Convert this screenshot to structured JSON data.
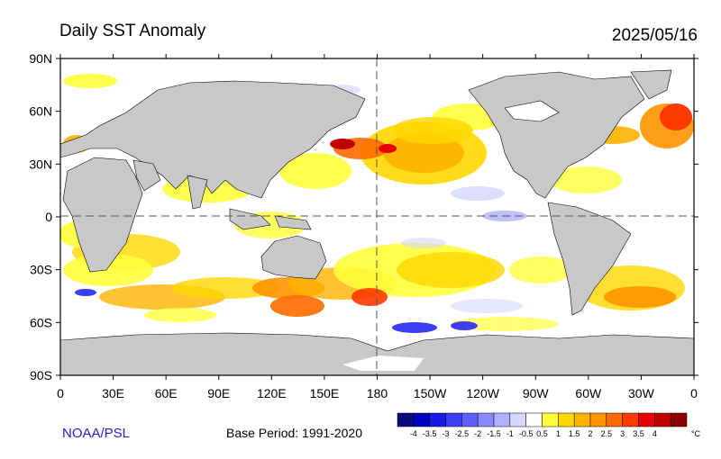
{
  "header": {
    "title": "Daily SST Anomaly",
    "date": "2025/05/16"
  },
  "footer": {
    "credit": "NOAA/PSL",
    "base_period": "Base Period: 1991-2020"
  },
  "map": {
    "projection": "equirectangular",
    "lon_range": [
      0,
      360
    ],
    "lat_range": [
      -90,
      90
    ],
    "land_color": "#c8c8c8",
    "ice_color": "#ffffff",
    "lat_labels": [
      "90N",
      "60N",
      "30N",
      "0",
      "30S",
      "60S",
      "90S"
    ],
    "lon_labels": [
      "0",
      "30E",
      "60E",
      "90E",
      "120E",
      "150E",
      "180",
      "150W",
      "120W",
      "90W",
      "60W",
      "30W",
      "0"
    ],
    "dashed_reference_lines": [
      "equator",
      "dateline"
    ]
  },
  "colorbar": {
    "unit": "°C",
    "colors": [
      "#0a0a7d",
      "#0000bd",
      "#1a1ae6",
      "#3d3df5",
      "#6060ff",
      "#8a8aff",
      "#b0b0ff",
      "#d6d6ff",
      "#ffffff",
      "#ffff3a",
      "#ffd700",
      "#ffb300",
      "#ff9400",
      "#ff6a00",
      "#ff3a00",
      "#e60000",
      "#c10000",
      "#8b0000"
    ],
    "labels": [
      "-4",
      "-3.5",
      "-3",
      "-2.5",
      "-2",
      "-1.5",
      "-1",
      "-0.5",
      "0.5",
      "1",
      "1.5",
      "2",
      "2.5",
      "3",
      "3.5",
      "4"
    ]
  }
}
